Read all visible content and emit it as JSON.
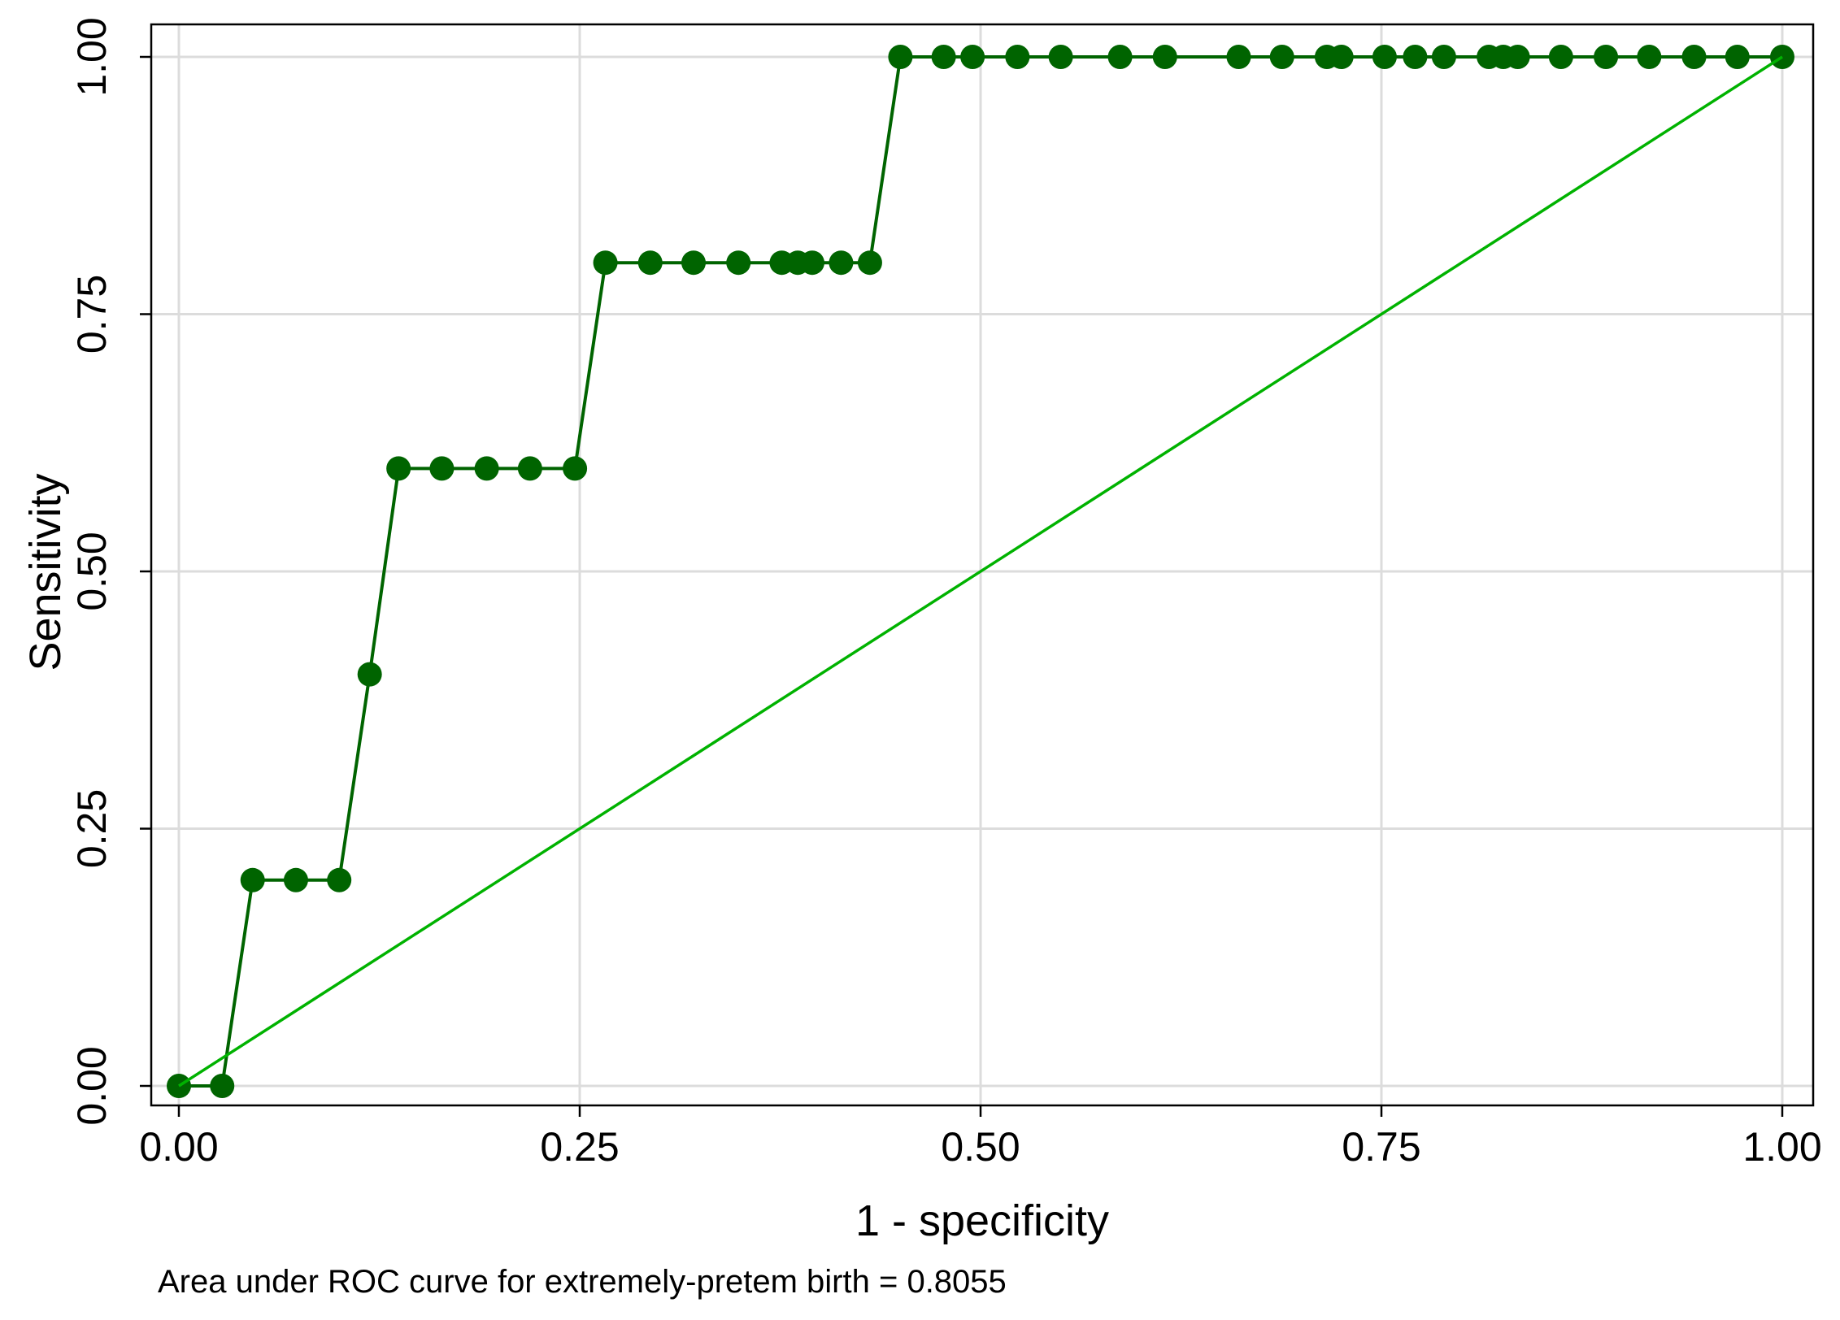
{
  "chart_data": {
    "type": "line",
    "xlabel": "1 - specificity",
    "ylabel": "Sensitivity",
    "note": "Area under ROC curve for extremely-pretem birth = 0.8055",
    "xlim": [
      0,
      1
    ],
    "ylim": [
      0,
      1
    ],
    "x_ticks": [
      "0.00",
      "0.25",
      "0.50",
      "0.75",
      "1.00"
    ],
    "y_ticks": [
      "0.00",
      "0.25",
      "0.50",
      "0.75",
      "1.00"
    ],
    "grid": true,
    "legend": "none",
    "series": [
      {
        "role": "roc-curve",
        "color": "#006400",
        "markers": true,
        "x": [
          0.0,
          0.027,
          0.046,
          0.073,
          0.1,
          0.119,
          0.137,
          0.164,
          0.192,
          0.219,
          0.247,
          0.266,
          0.294,
          0.321,
          0.349,
          0.376,
          0.386,
          0.395,
          0.413,
          0.431,
          0.45,
          0.477,
          0.495,
          0.523,
          0.55,
          0.587,
          0.615,
          0.661,
          0.688,
          0.716,
          0.725,
          0.752,
          0.771,
          0.789,
          0.817,
          0.826,
          0.835,
          0.862,
          0.89,
          0.917,
          0.945,
          0.972,
          1.0
        ],
        "y": [
          0.0,
          0.0,
          0.2,
          0.2,
          0.2,
          0.4,
          0.6,
          0.6,
          0.6,
          0.6,
          0.6,
          0.8,
          0.8,
          0.8,
          0.8,
          0.8,
          0.8,
          0.8,
          0.8,
          0.8,
          1.0,
          1.0,
          1.0,
          1.0,
          1.0,
          1.0,
          1.0,
          1.0,
          1.0,
          1.0,
          1.0,
          1.0,
          1.0,
          1.0,
          1.0,
          1.0,
          1.0,
          1.0,
          1.0,
          1.0,
          1.0,
          1.0,
          1.0
        ]
      },
      {
        "role": "reference-line",
        "color": "#00b200",
        "markers": false,
        "x": [
          0,
          1
        ],
        "y": [
          0,
          1
        ]
      }
    ]
  }
}
